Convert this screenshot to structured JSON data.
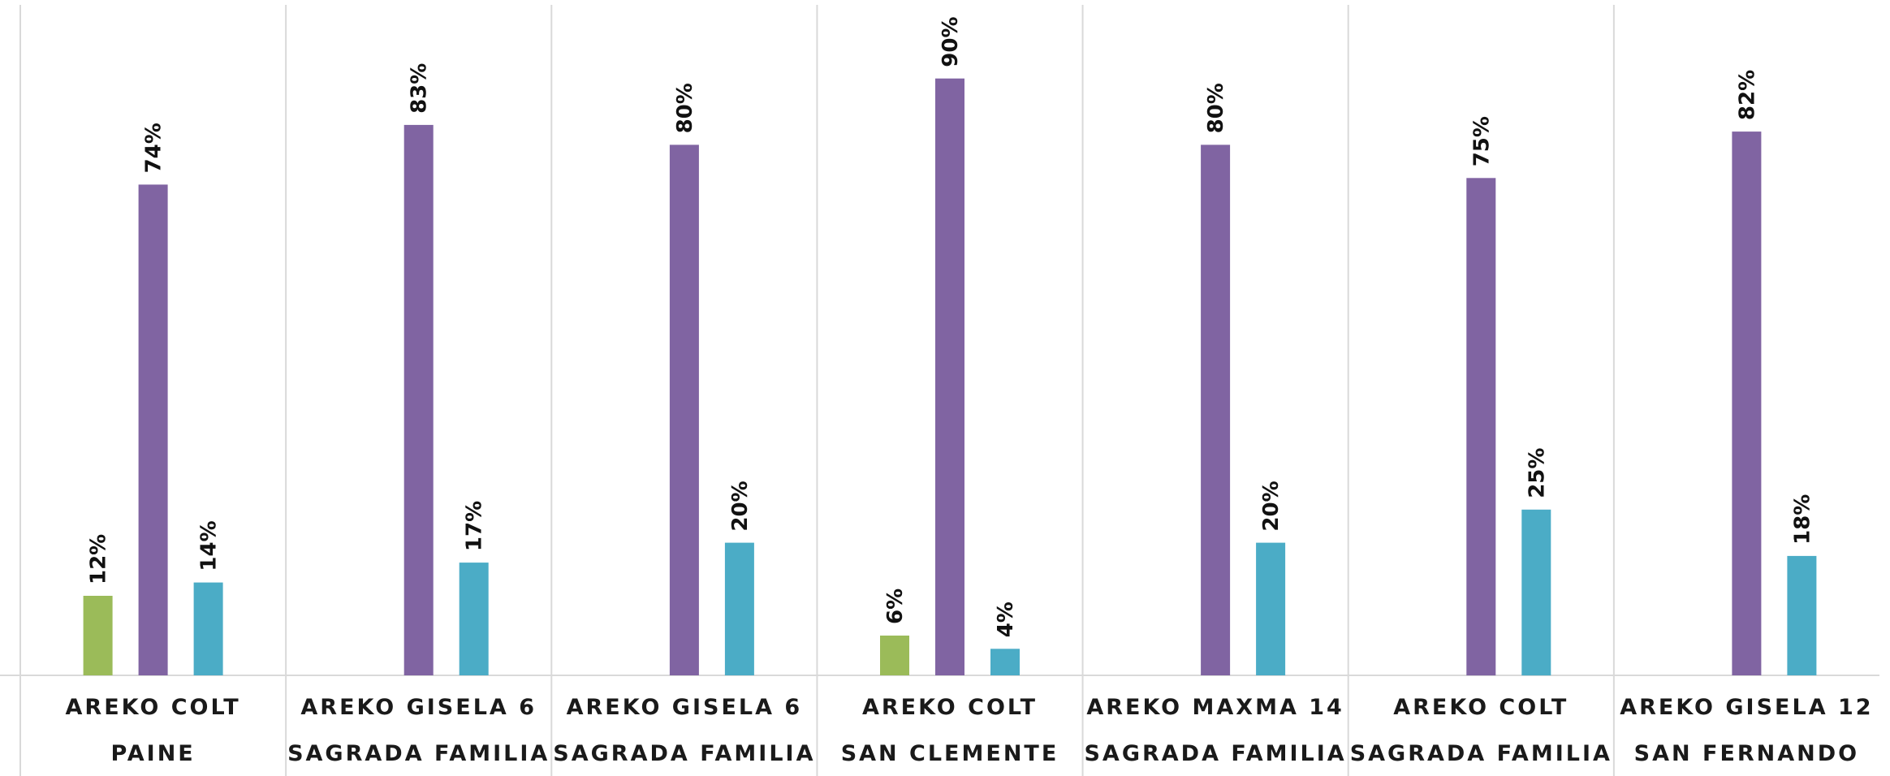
{
  "chart_data": {
    "type": "bar",
    "categories": [
      [
        "AREKO COLT",
        "PAINE"
      ],
      [
        "AREKO GISELA 6",
        "SAGRADA FAMILIA"
      ],
      [
        "AREKO GISELA 6",
        "SAGRADA FAMILIA"
      ],
      [
        "AREKO COLT",
        "SAN CLEMENTE"
      ],
      [
        "AREKO MAXMA 14",
        "SAGRADA FAMILIA"
      ],
      [
        "AREKO COLT",
        "SAGRADA FAMILIA"
      ],
      [
        "AREKO GISELA 12",
        "SAN FERNANDO"
      ]
    ],
    "series": [
      {
        "color": "#9bbb59",
        "values": [
          12,
          null,
          null,
          6,
          null,
          null,
          null
        ],
        "labels": [
          "12%",
          "",
          "",
          "6%",
          "",
          "",
          ""
        ]
      },
      {
        "color": "#8064a2",
        "values": [
          74,
          83,
          80,
          90,
          80,
          75,
          82
        ],
        "labels": [
          "74%",
          "83%",
          "80%",
          "90%",
          "80%",
          "75%",
          "82%"
        ]
      },
      {
        "color": "#4bacc6",
        "values": [
          14,
          17,
          20,
          4,
          20,
          25,
          18
        ],
        "labels": [
          "14%",
          "17%",
          "20%",
          "4%",
          "20%",
          "25%",
          "18%"
        ]
      }
    ],
    "ylim": [
      0,
      100
    ],
    "value_unit": "%",
    "grid": false,
    "legend": "none",
    "xlabel": "",
    "ylabel": "",
    "title": ""
  }
}
